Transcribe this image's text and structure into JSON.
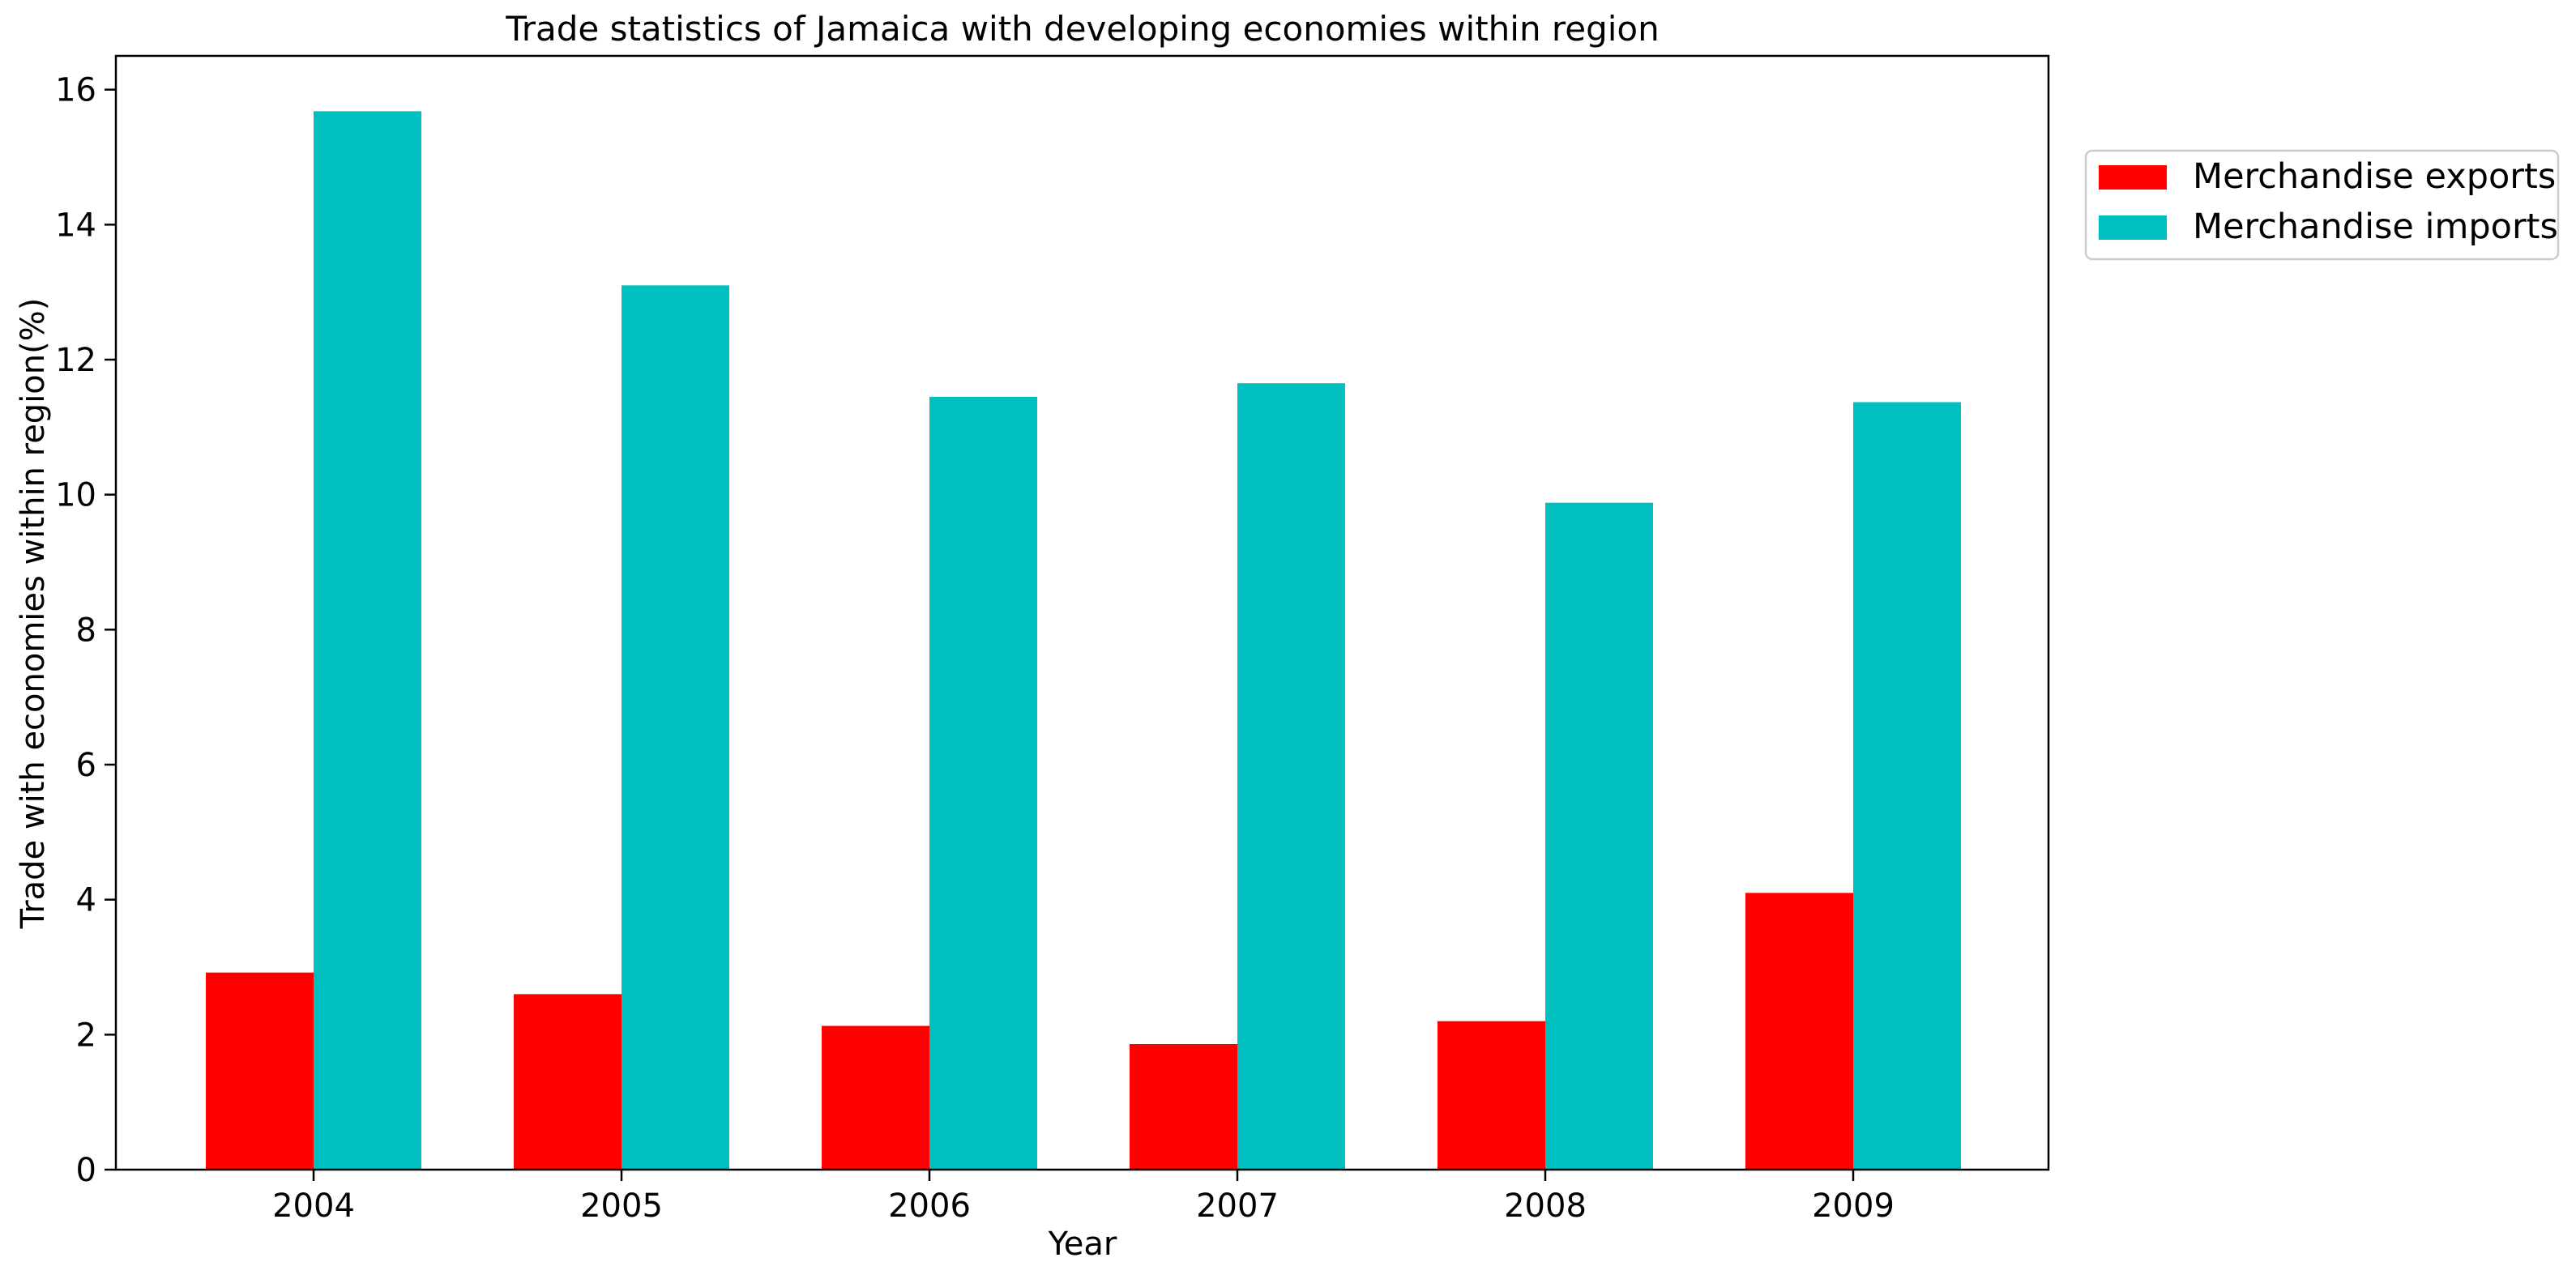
{
  "chart_data": {
    "type": "bar",
    "title": "Trade statistics of Jamaica with developing economies within region",
    "xlabel": "Year",
    "ylabel": "Trade with economies within region(%)",
    "categories": [
      "2004",
      "2005",
      "2006",
      "2007",
      "2008",
      "2009"
    ],
    "series": [
      {
        "name": "Merchandise exports",
        "color": "#ff0000",
        "values": [
          2.92,
          2.6,
          2.13,
          1.86,
          2.2,
          4.1
        ]
      },
      {
        "name": "Merchandise imports",
        "color": "#00bfbf",
        "values": [
          15.68,
          13.1,
          11.45,
          11.65,
          9.88,
          11.37
        ]
      }
    ],
    "ylim": [
      0,
      16.5
    ],
    "yticks": [
      0,
      2,
      4,
      6,
      8,
      10,
      12,
      14,
      16
    ],
    "grid": false,
    "legend_position": "outside-top-right"
  }
}
